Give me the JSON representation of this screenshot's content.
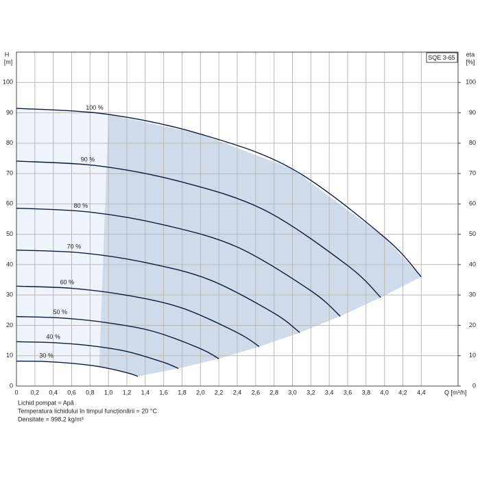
{
  "chart_data": {
    "type": "line",
    "model": "SQE 3-65",
    "ylabel": [
      "H",
      "[m]"
    ],
    "y2label": [
      "eta",
      "[%]"
    ],
    "xlabel": "Q [m³/h]",
    "xlim": [
      0,
      4.8
    ],
    "ylim": [
      0,
      110
    ],
    "y2lim": [
      0,
      110
    ],
    "xticks": [
      0,
      {
        "value": 0.2,
        "label": "0,2"
      },
      {
        "value": 0.4,
        "label": "0,4"
      },
      {
        "value": 0.6,
        "label": "0,6"
      },
      {
        "value": 0.8,
        "label": "0,8"
      },
      {
        "value": 1.0,
        "label": "1,0"
      },
      {
        "value": 1.2,
        "label": "1,2"
      },
      {
        "value": 1.4,
        "label": "1,4"
      },
      {
        "value": 1.6,
        "label": "1,6"
      },
      {
        "value": 1.8,
        "label": "1,8"
      },
      {
        "value": 2.0,
        "label": "2,0"
      },
      {
        "value": 2.2,
        "label": "2,2"
      },
      {
        "value": 2.4,
        "label": "2,4"
      },
      {
        "value": 2.6,
        "label": "2,6"
      },
      {
        "value": 2.8,
        "label": "2,8"
      },
      {
        "value": 3.0,
        "label": "3,0"
      },
      {
        "value": 3.2,
        "label": "3,2"
      },
      {
        "value": 3.4,
        "label": "3,4"
      },
      {
        "value": 3.6,
        "label": "3,6"
      },
      {
        "value": 3.8,
        "label": "3,8"
      },
      {
        "value": 4.0,
        "label": "4,0"
      },
      {
        "value": 4.2,
        "label": "4,2"
      },
      {
        "value": 4.4,
        "label": "4,4"
      }
    ],
    "yticks": [
      0,
      10,
      20,
      30,
      40,
      50,
      60,
      70,
      80,
      90,
      100
    ],
    "y2ticks": [
      0,
      10,
      20,
      30,
      40,
      50,
      60,
      70,
      80,
      90,
      100
    ],
    "grid": true,
    "color": "#0a1a3a",
    "series": [
      {
        "name": "100 %",
        "x": [
          0,
          1,
          2,
          3,
          4,
          4.4
        ],
        "values": [
          91.5,
          89.5,
          83,
          71.5,
          49,
          36
        ]
      },
      {
        "name": "90 %",
        "x": [
          0,
          0.9,
          1.8,
          2.7,
          3.6,
          3.96
        ],
        "values": [
          74.1,
          72.5,
          67.2,
          57.9,
          39.7,
          29.2
        ]
      },
      {
        "name": "80 %",
        "x": [
          0,
          0.8,
          1.6,
          2.4,
          3.2,
          3.52
        ],
        "values": [
          58.6,
          57.3,
          53.1,
          45.8,
          31.4,
          23.0
        ]
      },
      {
        "name": "70 %",
        "x": [
          0,
          0.7,
          1.4,
          2.1,
          2.8,
          3.08
        ],
        "values": [
          44.8,
          43.9,
          40.7,
          35.0,
          24.0,
          17.6
        ]
      },
      {
        "name": "60 %",
        "x": [
          0,
          0.6,
          1.2,
          1.8,
          2.4,
          2.64
        ],
        "values": [
          32.9,
          32.2,
          29.9,
          25.7,
          17.6,
          13.0
        ]
      },
      {
        "name": "50 %",
        "x": [
          0,
          0.5,
          1,
          1.5,
          2,
          2.2
        ],
        "values": [
          22.9,
          22.4,
          20.8,
          17.9,
          12.3,
          9.0
        ]
      },
      {
        "name": "40 %",
        "x": [
          0,
          0.4,
          0.8,
          1.2,
          1.6,
          1.76
        ],
        "values": [
          14.6,
          14.3,
          13.3,
          11.4,
          7.8,
          5.8
        ]
      },
      {
        "name": "30 %",
        "x": [
          0,
          0.3,
          0.6,
          0.9,
          1.2,
          1.32
        ],
        "values": [
          8.2,
          8.1,
          7.5,
          6.4,
          4.4,
          3.2
        ]
      }
    ],
    "notes": [
      "Lichid pompat = Apă",
      "Temperatura lichidului în timpul funcționării = 20 °C",
      "Densitate = 998.2 kg/m³"
    ]
  }
}
